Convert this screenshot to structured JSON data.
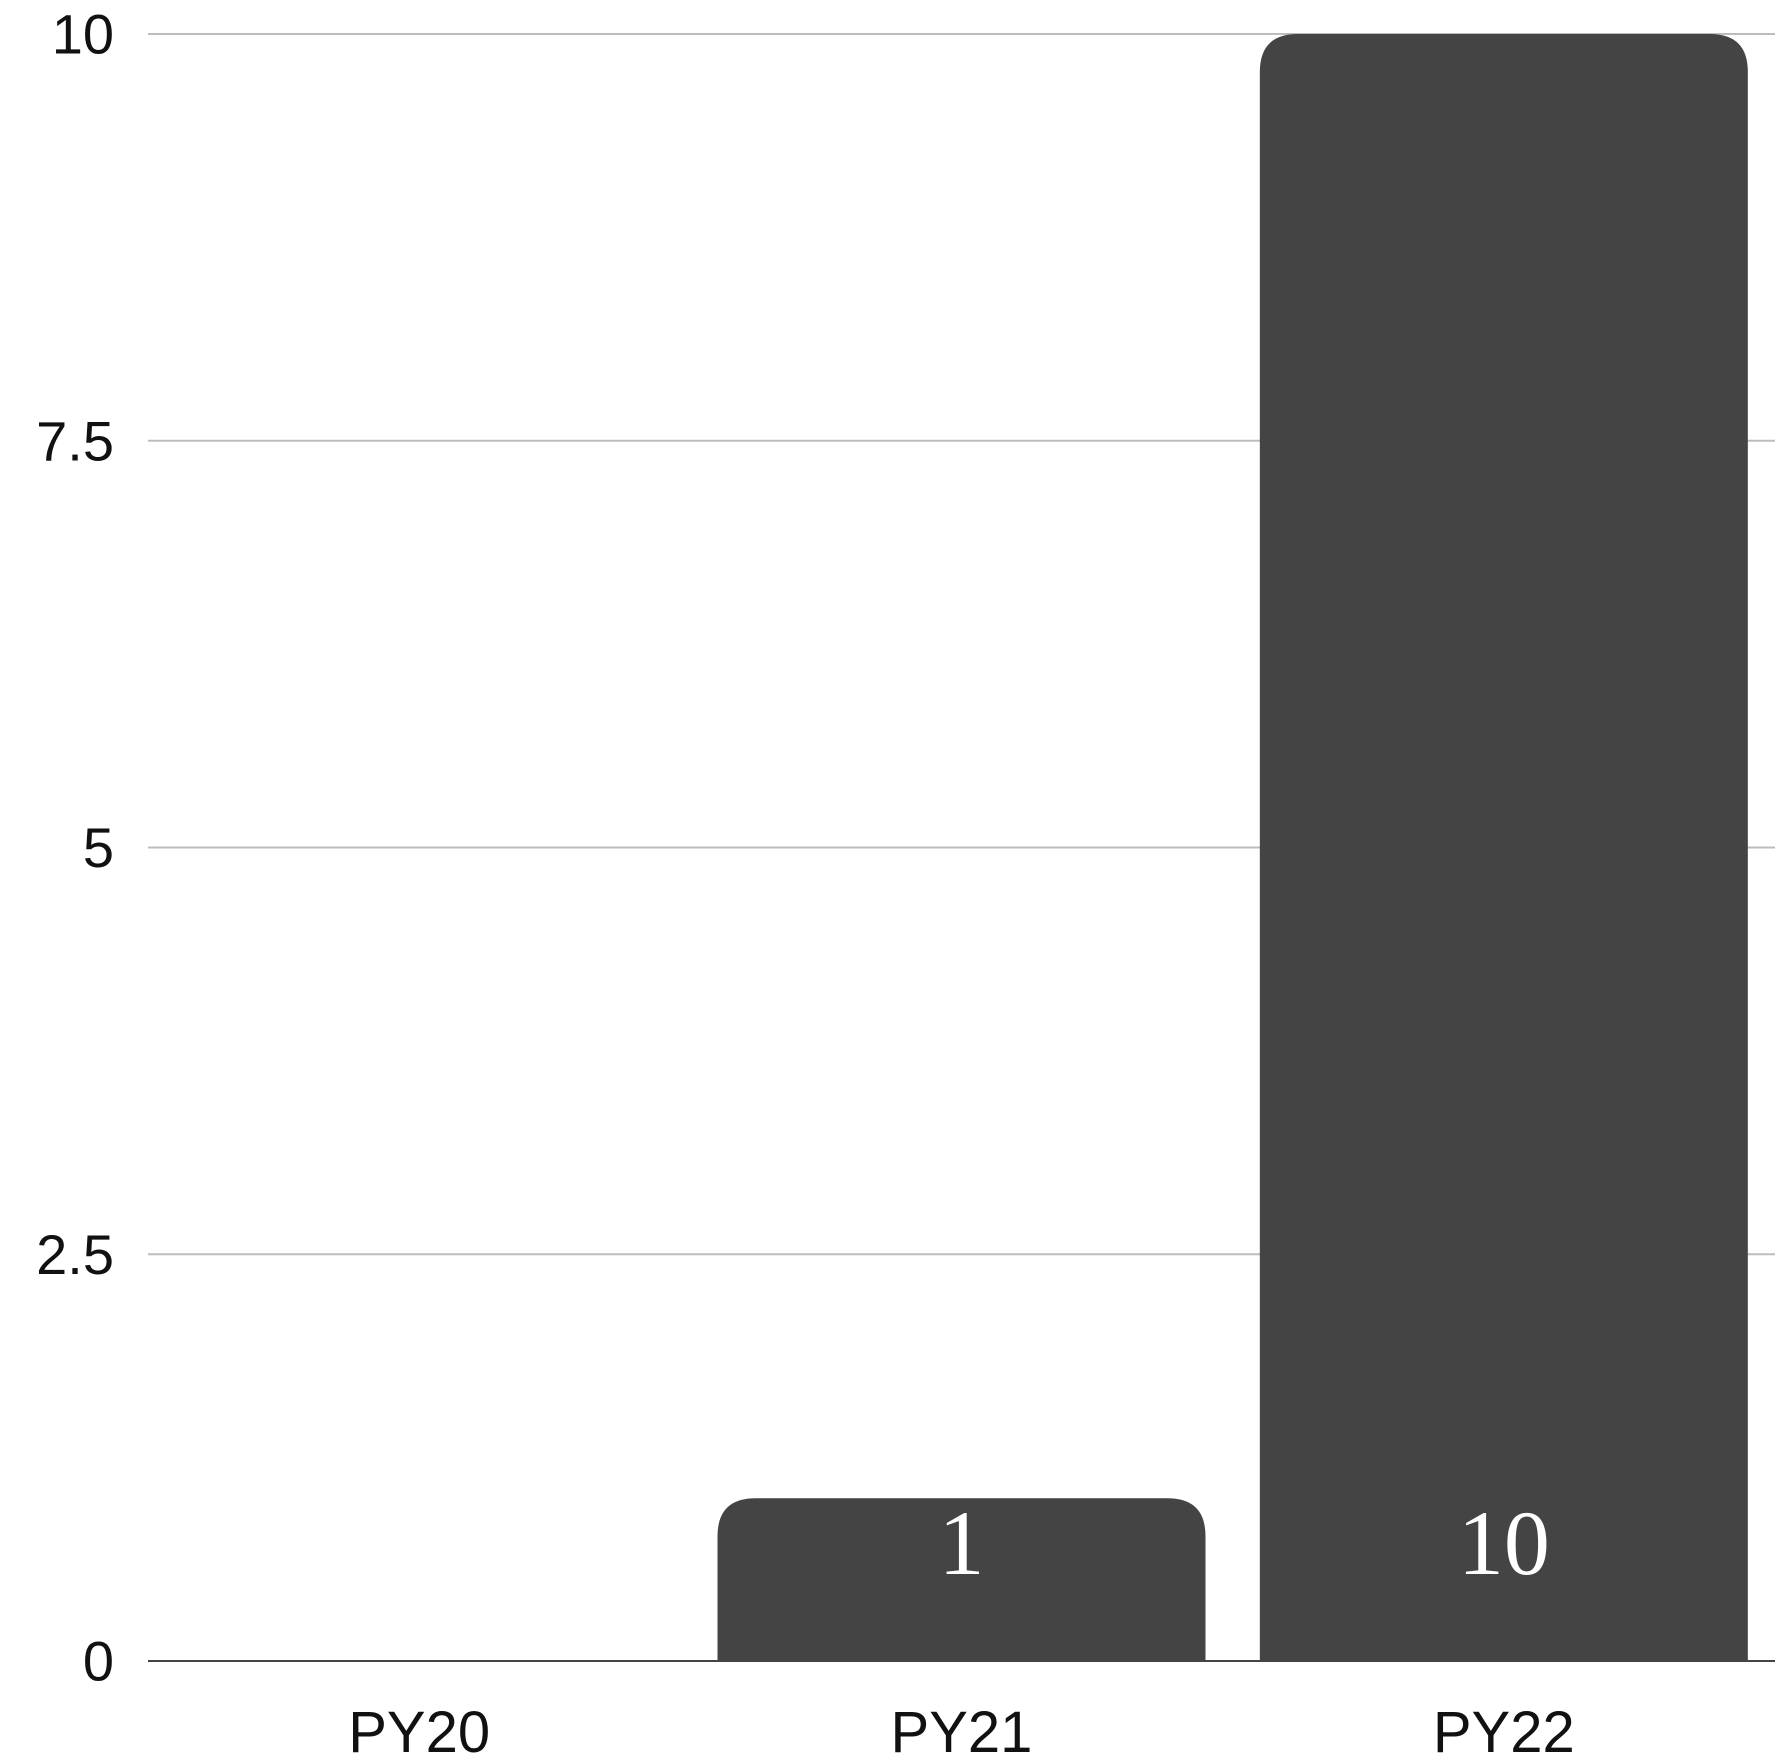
{
  "chart_data": {
    "type": "bar",
    "categories": [
      "PY20",
      "PY21",
      "PY22"
    ],
    "values": [
      0,
      1,
      10
    ],
    "data_labels": [
      "",
      "1",
      "10"
    ],
    "title": "",
    "xlabel": "",
    "ylabel": "",
    "ylim": [
      0,
      10
    ],
    "yticks": [
      0,
      2.5,
      5,
      7.5,
      10
    ],
    "ytick_labels": [
      "0",
      "2.5",
      "5",
      "7.5",
      "10"
    ],
    "grid": true,
    "legend": "none",
    "colors": {
      "bar": "#444444",
      "grid": "#bdbdbd",
      "baseline": "#444444",
      "data_label": "#ffffff"
    }
  }
}
